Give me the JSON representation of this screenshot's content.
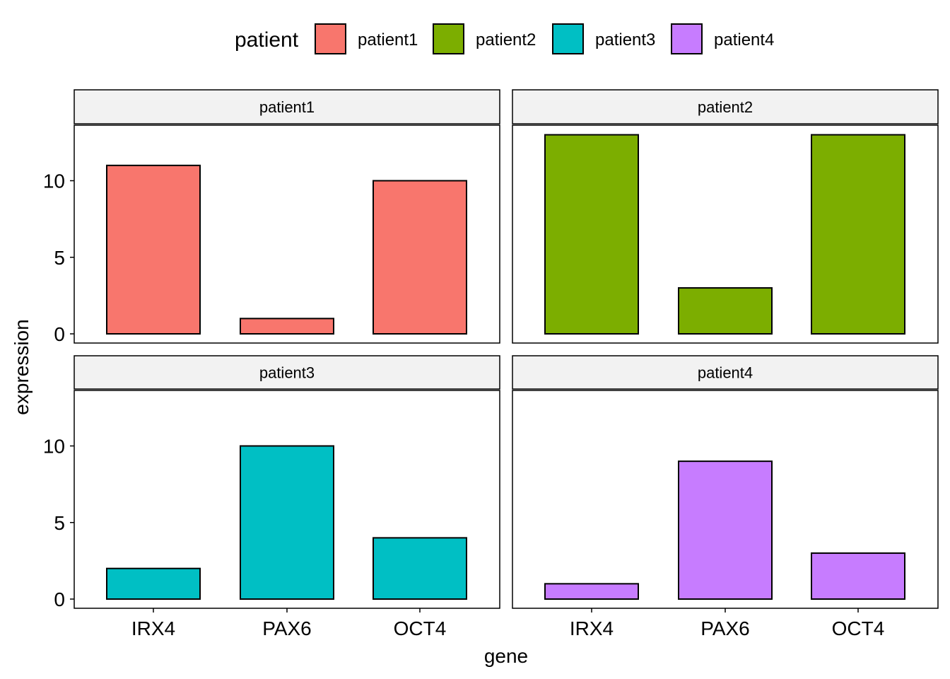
{
  "chart_data": {
    "type": "bar",
    "facet_by": "patient",
    "categories": [
      "IRX4",
      "PAX6",
      "OCT4"
    ],
    "xlabel": "gene",
    "ylabel": "expression",
    "ylim": [
      0,
      13
    ],
    "yticks": [
      0,
      5,
      10
    ],
    "legend": {
      "title": "patient",
      "placement": "top",
      "entries": [
        "patient1",
        "patient2",
        "patient3",
        "patient4"
      ]
    },
    "series": [
      {
        "name": "patient1",
        "color": "#F8766D",
        "values": [
          11,
          1,
          10
        ]
      },
      {
        "name": "patient2",
        "color": "#7CAE00",
        "values": [
          13,
          3,
          13
        ]
      },
      {
        "name": "patient3",
        "color": "#00BFC4",
        "values": [
          2,
          10,
          4
        ]
      },
      {
        "name": "patient4",
        "color": "#C77CFF",
        "values": [
          1,
          9,
          3
        ]
      }
    ]
  }
}
